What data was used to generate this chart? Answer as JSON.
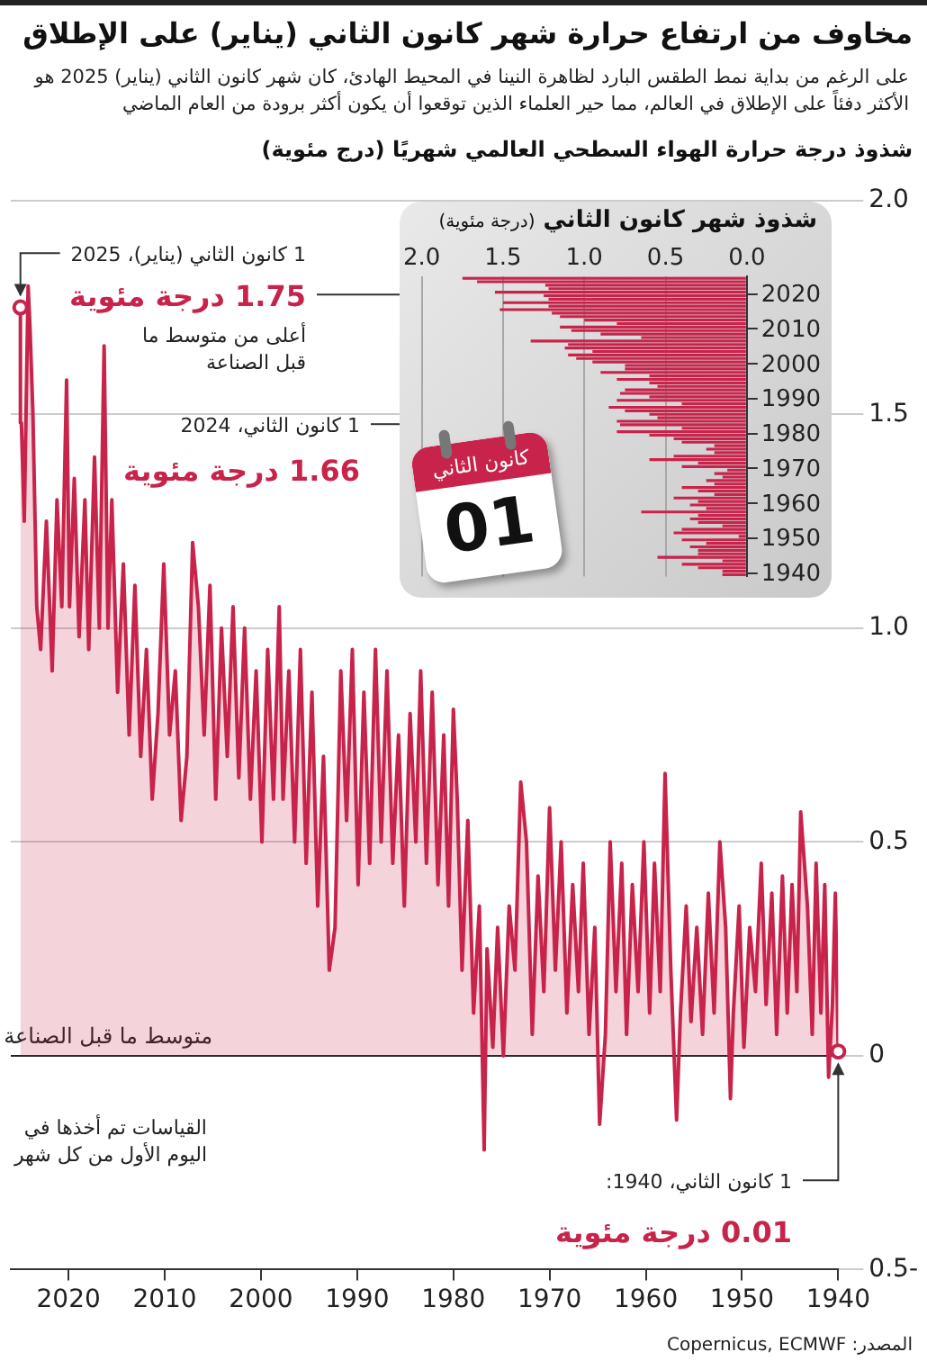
{
  "chart_data": [
    {
      "type": "area",
      "title": "مخاوف من ارتفاع حرارة شهر كانون الثاني (يناير) على الإطلاق",
      "subtitle": "على الرغم من بداية نمط الطقس البارد لظاهرة النينا في المحيط الهادئ، كان شهر كانون الثاني (يناير) 2025 هو الأكثر دفئاً على الإطلاق في العالم، مما حير العلماء الذين توقعوا أن يكون أكثر برودة من العام الماضي",
      "ylabel": "شذوذ درجة حرارة الهواء السطحي العالمي شهريًا (درج مئوية)",
      "color": "#c8234a",
      "x": [
        1940.0,
        1940.3,
        1940.6,
        1941.0,
        1941.4,
        1941.8,
        1942.3,
        1942.7,
        1943.2,
        1943.9,
        1944.3,
        1944.8,
        1945.3,
        1945.8,
        1946.4,
        1946.9,
        1947.5,
        1948.0,
        1948.6,
        1949.2,
        1949.8,
        1950.3,
        1950.9,
        1951.2,
        1951.7,
        1952.3,
        1952.9,
        1953.5,
        1954.1,
        1954.7,
        1955.3,
        1955.8,
        1956.4,
        1956.8,
        1957.4,
        1958.0,
        1958.5,
        1959.1,
        1959.6,
        1960.2,
        1960.8,
        1961.4,
        1962.0,
        1962.5,
        1963.1,
        1963.7,
        1964.2,
        1964.8,
        1965.3,
        1965.9,
        1966.5,
        1967.0,
        1967.6,
        1968.2,
        1968.8,
        1969.4,
        1970.0,
        1970.6,
        1971.2,
        1971.8,
        1972.4,
        1973.0,
        1973.6,
        1974.2,
        1974.8,
        1975.4,
        1975.9,
        1976.5,
        1976.8,
        1977.3,
        1977.9,
        1978.5,
        1979.1,
        1979.6,
        1980.0,
        1980.5,
        1981.0,
        1981.6,
        1982.2,
        1982.8,
        1983.4,
        1983.9,
        1984.5,
        1985.1,
        1985.7,
        1986.3,
        1986.9,
        1987.5,
        1988.1,
        1988.7,
        1989.3,
        1989.9,
        1990.5,
        1991.1,
        1991.7,
        1992.3,
        1992.9,
        1993.5,
        1994.1,
        1994.7,
        1995.3,
        1995.9,
        1996.5,
        1997.1,
        1997.7,
        1998.1,
        1998.7,
        1999.3,
        1999.9,
        2000.5,
        2001.1,
        2001.7,
        2002.3,
        2002.9,
        2003.5,
        2004.1,
        2004.7,
        2005.3,
        2005.9,
        2006.5,
        2007.1,
        2007.7,
        2008.3,
        2008.9,
        2009.5,
        2010.1,
        2010.7,
        2011.3,
        2011.9,
        2012.5,
        2013.1,
        2013.7,
        2014.3,
        2014.9,
        2015.5,
        2015.9,
        2016.3,
        2016.8,
        2017.3,
        2017.9,
        2018.3,
        2018.9,
        2019.4,
        2019.9,
        2020.2,
        2020.7,
        2021.2,
        2021.7,
        2022.3,
        2022.9,
        2023.3,
        2023.7,
        2024.0,
        2024.2,
        2024.6,
        2024.9,
        2025.0
      ],
      "values": [
        0.01,
        0.38,
        0.12,
        -0.05,
        0.4,
        0.1,
        0.45,
        0.05,
        0.35,
        0.57,
        0.15,
        0.4,
        0.1,
        0.42,
        0.05,
        0.38,
        0.12,
        0.45,
        0.15,
        0.3,
        0.02,
        0.35,
        0.1,
        -0.1,
        0.3,
        0.5,
        0.1,
        0.38,
        0.05,
        0.3,
        0.08,
        0.35,
        0.1,
        -0.15,
        0.2,
        0.66,
        0.15,
        0.45,
        0.1,
        0.5,
        0.15,
        0.4,
        0.05,
        0.45,
        0.15,
        0.5,
        0.05,
        -0.16,
        0.3,
        0.05,
        0.45,
        0.15,
        0.4,
        0.1,
        0.5,
        0.2,
        0.58,
        0.15,
        0.42,
        0.05,
        0.5,
        0.64,
        0.2,
        0.35,
        0.0,
        0.3,
        0.02,
        0.25,
        -0.22,
        0.35,
        0.1,
        0.55,
        0.2,
        0.6,
        0.81,
        0.35,
        0.75,
        0.4,
        0.85,
        0.45,
        0.9,
        0.5,
        0.8,
        0.35,
        0.75,
        0.45,
        0.9,
        0.5,
        0.95,
        0.45,
        0.85,
        0.4,
        0.95,
        0.55,
        0.9,
        0.3,
        0.2,
        0.7,
        0.35,
        0.85,
        0.45,
        0.95,
        0.5,
        0.9,
        0.6,
        1.05,
        0.6,
        0.95,
        0.5,
        0.9,
        0.6,
        1.0,
        0.65,
        1.05,
        0.7,
        1.0,
        0.6,
        1.1,
        0.75,
        1.05,
        1.2,
        0.7,
        0.55,
        0.9,
        0.75,
        1.15,
        0.8,
        0.6,
        0.95,
        0.7,
        1.1,
        0.75,
        1.15,
        0.85,
        1.3,
        1.0,
        1.66,
        1.0,
        1.4,
        0.95,
        1.3,
        0.98,
        1.35,
        1.05,
        1.58,
        1.05,
        1.3,
        0.9,
        1.25,
        0.95,
        1.05,
        1.5,
        1.7,
        1.8,
        1.25,
        1.48,
        1.75
      ],
      "xlim": [
        2026,
        1940
      ],
      "xticks": [
        2020,
        2010,
        2000,
        1990,
        1980,
        1970,
        1960,
        1950,
        1940
      ],
      "ylim": [
        -0.5,
        2
      ],
      "yticks": [
        {
          "value": 2,
          "label": "2.0"
        },
        1.5,
        {
          "value": 1,
          "label": "1.0"
        },
        0.5,
        0,
        {
          "value": -0.5,
          "label": "0.5-"
        }
      ],
      "grid": "y",
      "ref_lines": [
        {
          "axis": "y",
          "value": 0,
          "label": "متوسط ما قبل الصناعة",
          "color": "#222222"
        }
      ],
      "annotations": [
        {
          "text": "1 كانون الثاني (يناير)، 2025",
          "x": 2025,
          "y": 1.75
        },
        "1.75 درجة مئوية",
        "أعلى من متوسط ما قبل الصناعة",
        "1 كانون الثاني، 2024",
        "1.66 درجة مئوية",
        "القياسات تم أخذها في اليوم الأول من كل شهر",
        {
          "text": "1 كانون الثاني، 1940:",
          "x": 1940,
          "y": 0.01
        },
        "0.01 درجة مئوية",
        "المصدر: Copernicus, ECMWF"
      ]
    },
    {
      "type": "bar",
      "orientation": "horizontal",
      "title": "شذوذ شهر كانون الثاني",
      "subtitle": "(درجة مئوية)",
      "color": "#c8234a",
      "categories": [
        null,
        null,
        null,
        null,
        null,
        "2020",
        null,
        null,
        null,
        null,
        null,
        null,
        null,
        null,
        null,
        "2010",
        null,
        null,
        null,
        null,
        null,
        null,
        null,
        null,
        null,
        "2000",
        null,
        null,
        null,
        null,
        null,
        null,
        null,
        null,
        null,
        "1990",
        null,
        null,
        null,
        null,
        null,
        null,
        null,
        null,
        null,
        "1980",
        null,
        null,
        null,
        null,
        null,
        null,
        null,
        null,
        null,
        "1970",
        null,
        null,
        null,
        null,
        null,
        null,
        null,
        null,
        null,
        "1960",
        null,
        null,
        null,
        null,
        null,
        null,
        null,
        null,
        null,
        "1950",
        null,
        null,
        null,
        null,
        null,
        null,
        null,
        null,
        null,
        "1940"
      ],
      "values": [
        1.75,
        1.66,
        1.24,
        1.22,
        1.55,
        1.25,
        1.22,
        1.5,
        1.22,
        1.52,
        1.2,
        1.15,
        1.0,
        0.8,
        1.15,
        1.08,
        0.9,
        0.65,
        1.33,
        1.1,
        1.12,
        0.95,
        1.1,
        1.05,
        0.95,
        0.75,
        0.75,
        0.9,
        0.6,
        0.8,
        0.6,
        0.55,
        0.75,
        0.78,
        0.6,
        0.8,
        0.4,
        0.85,
        0.75,
        0.6,
        0.55,
        0.8,
        0.78,
        0.4,
        0.8,
        0.6,
        0.45,
        0.4,
        0.2,
        0.25,
        0.2,
        0.45,
        0.6,
        0.3,
        0.4,
        0.12,
        0.2,
        0.15,
        0.25,
        0.2,
        0.4,
        0.3,
        0.2,
        0.45,
        0.3,
        0.35,
        0.25,
        0.65,
        0.3,
        0.35,
        0.3,
        0.15,
        0.4,
        0.45,
        0.05,
        0.4,
        0.25,
        0.35,
        0.3,
        0.3,
        0.55,
        0.15,
        0.4,
        0.3,
        0.15,
        0.15
      ],
      "xlim": [
        2,
        0
      ],
      "xticks": [
        {
          "value": 2,
          "label": "2.0"
        },
        1.5,
        {
          "value": 1,
          "label": "1.0"
        },
        0.5,
        {
          "value": 0,
          "label": "0.0"
        }
      ],
      "grid": "x",
      "annotations": [
        "كانون الثاني",
        "01"
      ]
    }
  ]
}
